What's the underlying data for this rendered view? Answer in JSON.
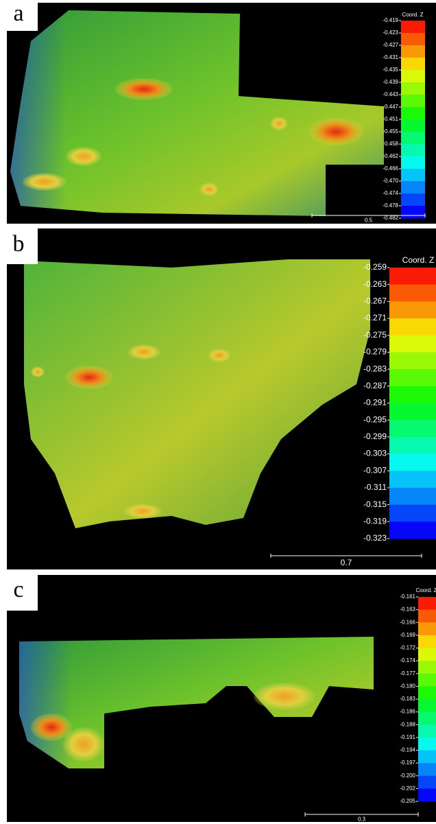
{
  "panels": [
    {
      "label": "a",
      "colorbar": {
        "title": "Coord. Z",
        "ticks": [
          "-0.419",
          "-0.423",
          "-0.427",
          "-0.431",
          "-0.435",
          "-0.439",
          "-0.443",
          "-0.447",
          "-0.451",
          "-0.455",
          "-0.458",
          "-0.462",
          "-0.466",
          "-0.470",
          "-0.474",
          "-0.478",
          "-0.482"
        ]
      },
      "scale_bar": "0.5"
    },
    {
      "label": "b",
      "colorbar": {
        "title": "Coord. Z",
        "ticks": [
          "-0.259",
          "-0.263",
          "-0.267",
          "-0.271",
          "-0.275",
          "-0.279",
          "-0.283",
          "-0.287",
          "-0.291",
          "-0.295",
          "-0.299",
          "-0.303",
          "-0.307",
          "-0.311",
          "-0.315",
          "-0.319",
          "-0.323"
        ]
      },
      "scale_bar": "0.7"
    },
    {
      "label": "c",
      "colorbar": {
        "title": "Coord. Z",
        "ticks": [
          "-0.161",
          "-0.163",
          "-0.166",
          "-0.169",
          "-0.172",
          "-0.174",
          "-0.177",
          "-0.180",
          "-0.183",
          "-0.186",
          "-0.188",
          "-0.191",
          "-0.194",
          "-0.197",
          "-0.200",
          "-0.202",
          "-0.205"
        ]
      },
      "scale_bar": "0.3"
    }
  ]
}
